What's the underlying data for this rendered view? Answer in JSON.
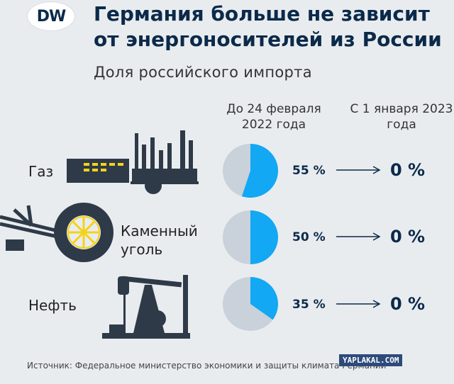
{
  "logo": {
    "text": "DW"
  },
  "title": "Германия больше не зависит от энергоносителей из России",
  "subtitle": "Доля российского импорта",
  "columns": {
    "before": "До 24 февраля 2022 года",
    "after": "С 1 января 2023 года"
  },
  "colors": {
    "share": "#12a8f4",
    "rest": "#c9d1da",
    "text": "#0b2a4a"
  },
  "chart_data": {
    "type": "pie",
    "title": "Доля российского импорта",
    "rows": [
      {
        "category": "Газ",
        "before_label": "55 %",
        "after_label": "0 %",
        "before": 55,
        "after": 0,
        "icon": "gas-plant-icon"
      },
      {
        "category": "Каменный уголь",
        "before_label": "50 %",
        "after_label": "0 %",
        "before": 50,
        "after": 0,
        "icon": "bucket-wheel-excavator-icon"
      },
      {
        "category": "Нефть",
        "before_label": "35 %",
        "after_label": "0 %",
        "before": 35,
        "after": 0,
        "icon": "oil-pump-jack-icon"
      }
    ]
  },
  "source": "Источник: Федеральное министерство экономики и защиты климата Германии",
  "watermark": "YAPLAKAL.COM"
}
